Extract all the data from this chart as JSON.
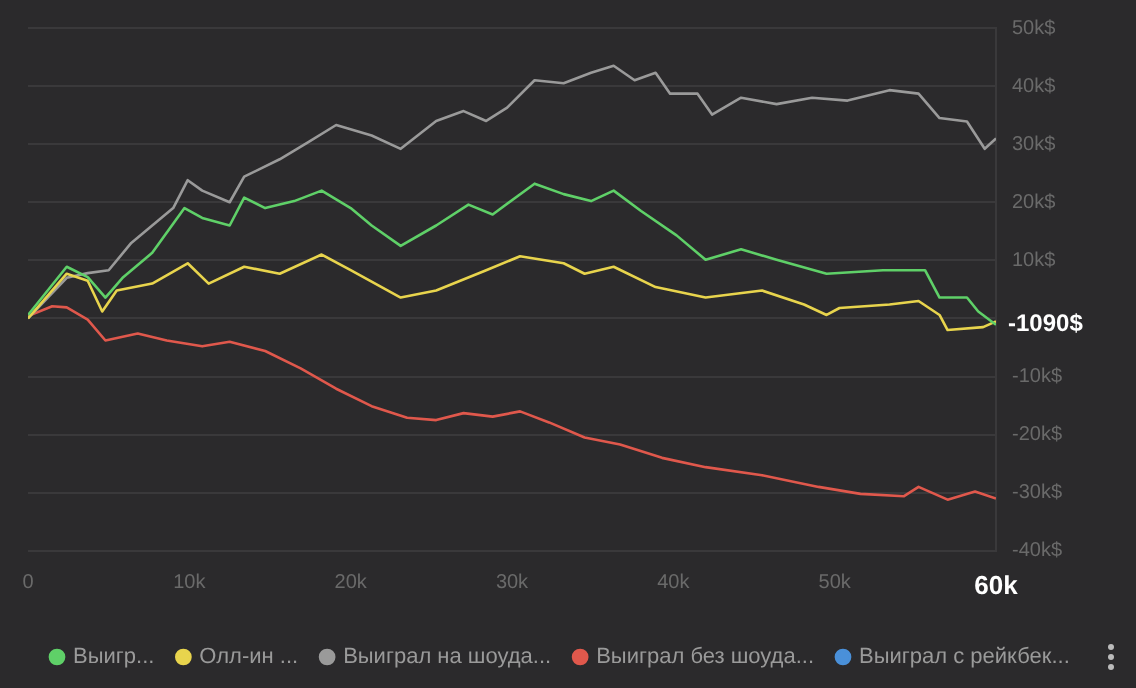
{
  "chart_data": {
    "type": "line",
    "legend": "bottom",
    "grid": "y",
    "marker": "none",
    "line_style": "solid",
    "xlim": [
      0,
      60000
    ],
    "xticks": [
      {
        "value": 0,
        "label": "0"
      },
      {
        "value": 10000,
        "label": "10k"
      },
      {
        "value": 20000,
        "label": "20k"
      },
      {
        "value": 30000,
        "label": "30k"
      },
      {
        "value": 40000,
        "label": "40k"
      },
      {
        "value": 50000,
        "label": "50k"
      },
      {
        "value": 60000,
        "label": "60k"
      }
    ],
    "ylim": [
      -40000,
      50000
    ],
    "yticks": [
      {
        "value": -40000,
        "label": "-40k$"
      },
      {
        "value": -30000,
        "label": "-30k$"
      },
      {
        "value": -20000,
        "label": "-20k$"
      },
      {
        "value": -10000,
        "label": "-10k$"
      },
      {
        "value": 0,
        "label": null
      },
      {
        "value": 10000,
        "label": "10k$"
      },
      {
        "value": 20000,
        "label": "20k$"
      },
      {
        "value": 30000,
        "label": "30k$"
      },
      {
        "value": 40000,
        "label": "40k$"
      },
      {
        "value": 50000,
        "label": "50k$"
      }
    ],
    "annotations": [
      {
        "text": "-1090$",
        "x": 60000,
        "y": -1090
      }
    ],
    "series": [
      {
        "name": "Выигр...",
        "color": "#5fd068",
        "x": [
          0,
          2400,
          3700,
          4800,
          5900,
          7700,
          9700,
          10800,
          12500,
          13400,
          14700,
          16500,
          18200,
          20000,
          21300,
          23100,
          25300,
          27300,
          28800,
          31400,
          33200,
          34900,
          36300,
          38000,
          40200,
          42000,
          44200,
          46400,
          49500,
          53000,
          55600,
          56500,
          58200,
          58900,
          60000
        ],
        "values": [
          600,
          8900,
          7100,
          3600,
          7100,
          11300,
          19000,
          17300,
          16000,
          20800,
          19000,
          20200,
          22000,
          19000,
          16000,
          12500,
          16000,
          19600,
          17900,
          23200,
          21400,
          20200,
          22000,
          18500,
          14300,
          10100,
          11900,
          10100,
          7700,
          8300,
          8300,
          3600,
          3600,
          1200,
          -1090
        ]
      },
      {
        "name": "Олл-ин ...",
        "color": "#e8d44d",
        "x": [
          0,
          2400,
          3700,
          4600,
          5500,
          7700,
          9900,
          11200,
          13400,
          15600,
          18200,
          20000,
          23100,
          25300,
          28400,
          30500,
          33200,
          34500,
          36300,
          38900,
          42000,
          45500,
          48100,
          49500,
          50300,
          53400,
          55200,
          56500,
          57000,
          59200,
          60000
        ],
        "values": [
          0,
          7700,
          6500,
          1200,
          4800,
          6000,
          9500,
          6000,
          8900,
          7700,
          11000,
          8300,
          3600,
          4800,
          8300,
          10700,
          9500,
          7700,
          8900,
          5400,
          3600,
          4800,
          2400,
          600,
          1800,
          2400,
          3000,
          600,
          -2000,
          -1500,
          -500
        ]
      },
      {
        "name": "Выиграл на шоуда...",
        "color": "#9a9a9a",
        "x": [
          0,
          2400,
          3700,
          5000,
          6400,
          9000,
          9900,
          10800,
          12500,
          13400,
          15600,
          17400,
          19100,
          21300,
          23100,
          25300,
          27000,
          28400,
          29700,
          31400,
          33200,
          34900,
          36300,
          37600,
          38900,
          39800,
          41500,
          42400,
          44200,
          46400,
          48600,
          50800,
          53400,
          55200,
          56500,
          58200,
          59300,
          60000
        ],
        "values": [
          0,
          7000,
          7800,
          8300,
          13000,
          19000,
          23800,
          22000,
          20000,
          24400,
          27400,
          30400,
          33300,
          31500,
          29200,
          34000,
          35700,
          34000,
          36300,
          41000,
          40500,
          42300,
          43500,
          41000,
          42300,
          38700,
          38700,
          35100,
          38000,
          36900,
          38000,
          37500,
          39300,
          38700,
          34500,
          33900,
          29200,
          31000
        ]
      },
      {
        "name": "Выиграл без шоуда...",
        "color": "#e0584c",
        "x": [
          0,
          1500,
          2400,
          3700,
          4800,
          6800,
          8600,
          10800,
          12500,
          14700,
          16900,
          19100,
          21300,
          23500,
          25300,
          27000,
          28800,
          30500,
          32300,
          34500,
          36700,
          39300,
          42000,
          45500,
          49000,
          51600,
          54300,
          55200,
          57000,
          58700,
          60000
        ],
        "values": [
          400,
          2100,
          1900,
          -200,
          -3800,
          -2600,
          -3800,
          -4800,
          -4000,
          -5600,
          -8600,
          -12100,
          -15100,
          -17100,
          -17500,
          -16300,
          -16900,
          -16000,
          -17900,
          -20500,
          -21700,
          -24000,
          -25600,
          -27000,
          -29000,
          -30200,
          -30600,
          -29000,
          -31200,
          -29800,
          -31000
        ]
      },
      {
        "name": "Выиграл с рейкбек...",
        "color": "#4a90d9"
      }
    ]
  }
}
